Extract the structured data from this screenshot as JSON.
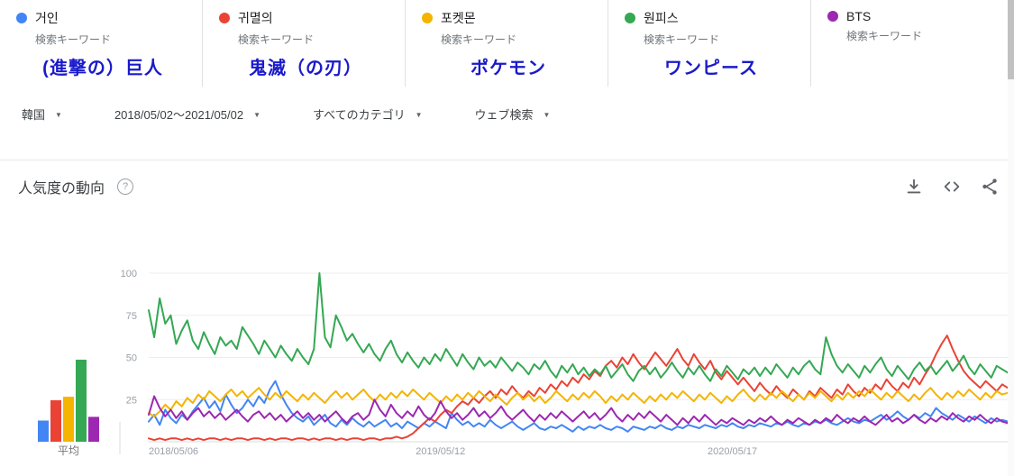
{
  "keywords": {
    "subtitle": "検索キーワード",
    "items": [
      {
        "term": "거인",
        "color": "#4285f4",
        "annotation": "(進撃の）巨人"
      },
      {
        "term": "귀멸의",
        "color": "#ea4335",
        "annotation": "鬼滅（の刃）"
      },
      {
        "term": "포켓몬",
        "color": "#f4b400",
        "annotation": "ポケモン"
      },
      {
        "term": "원피스",
        "color": "#34a853",
        "annotation": "ワンピース"
      },
      {
        "term": "BTS",
        "color": "#9c27b0"
      }
    ]
  },
  "filters": {
    "items": [
      {
        "label": "韓国"
      },
      {
        "label": "2018/05/02～2021/05/02"
      },
      {
        "label": "すべてのカテゴリ"
      },
      {
        "label": "ウェブ検索"
      }
    ]
  },
  "section": {
    "title": "人気度の動向",
    "actions": [
      {
        "icon": "download"
      },
      {
        "icon": "embed"
      },
      {
        "icon": "share"
      }
    ]
  },
  "chart_data": {
    "type": "line",
    "title": "人気度の動向",
    "ylim": [
      0,
      100
    ],
    "y_ticks": [
      25,
      50,
      75,
      100
    ],
    "grid": true,
    "avg_label": "平均",
    "x_tick_labels": [
      {
        "label": "2018/05/06",
        "index": 0
      },
      {
        "label": "2019/05/12",
        "index": 53
      },
      {
        "label": "2020/05/17",
        "index": 106
      }
    ],
    "series": [
      {
        "name": "거인",
        "color": "#4285f4",
        "values": [
          12,
          16,
          10,
          19,
          14,
          11,
          16,
          13,
          18,
          22,
          26,
          20,
          24,
          18,
          28,
          22,
          17,
          20,
          25,
          21,
          27,
          23,
          31,
          36,
          28,
          22,
          17,
          14,
          12,
          15,
          10,
          13,
          16,
          11,
          9,
          13,
          10,
          14,
          11,
          9,
          12,
          9,
          11,
          13,
          9,
          11,
          8,
          12,
          10,
          8,
          11,
          9,
          12,
          10,
          8,
          17,
          13,
          10,
          12,
          9,
          11,
          9,
          13,
          10,
          8,
          10,
          12,
          9,
          7,
          9,
          11,
          8,
          7,
          9,
          8,
          10,
          8,
          6,
          9,
          7,
          9,
          8,
          10,
          8,
          7,
          9,
          8,
          6,
          9,
          8,
          7,
          9,
          8,
          10,
          8,
          7,
          9,
          8,
          10,
          9,
          8,
          10,
          9,
          8,
          10,
          9,
          11,
          9,
          8,
          10,
          9,
          11,
          10,
          9,
          11,
          10,
          12,
          10,
          9,
          11,
          10,
          12,
          11,
          13,
          11,
          10,
          12,
          14,
          12,
          11,
          13,
          12,
          14,
          16,
          13,
          15,
          18,
          15,
          13,
          16,
          14,
          17,
          15,
          20,
          17,
          15,
          13,
          16,
          14,
          12,
          15,
          13,
          11,
          14,
          12,
          13,
          12
        ]
      },
      {
        "name": "귀멸의",
        "color": "#ea4335",
        "values": [
          2,
          1,
          2,
          1,
          2,
          2,
          1,
          2,
          1,
          2,
          1,
          2,
          2,
          1,
          2,
          1,
          2,
          2,
          1,
          2,
          2,
          1,
          2,
          1,
          2,
          2,
          1,
          2,
          2,
          1,
          2,
          1,
          2,
          2,
          1,
          2,
          1,
          2,
          2,
          1,
          2,
          2,
          1,
          2,
          2,
          3,
          2,
          3,
          5,
          8,
          11,
          14,
          12,
          16,
          19,
          17,
          21,
          24,
          22,
          26,
          23,
          27,
          30,
          26,
          31,
          28,
          33,
          29,
          26,
          30,
          27,
          32,
          29,
          34,
          31,
          36,
          33,
          38,
          35,
          40,
          37,
          42,
          39,
          45,
          48,
          44,
          50,
          46,
          52,
          47,
          43,
          48,
          53,
          49,
          45,
          50,
          55,
          49,
          45,
          52,
          47,
          43,
          48,
          41,
          37,
          42,
          38,
          34,
          38,
          34,
          30,
          35,
          31,
          28,
          33,
          29,
          26,
          31,
          28,
          25,
          30,
          27,
          32,
          29,
          26,
          31,
          28,
          34,
          30,
          27,
          32,
          29,
          34,
          31,
          37,
          33,
          30,
          35,
          32,
          38,
          34,
          40,
          45,
          52,
          58,
          63,
          55,
          48,
          42,
          38,
          35,
          32,
          36,
          33,
          30,
          34,
          32
        ]
      },
      {
        "name": "포켓몬",
        "color": "#f4b400",
        "values": [
          17,
          15,
          18,
          22,
          19,
          24,
          21,
          26,
          23,
          28,
          25,
          30,
          27,
          24,
          28,
          31,
          27,
          30,
          26,
          29,
          32,
          28,
          25,
          29,
          26,
          30,
          27,
          24,
          28,
          25,
          29,
          26,
          23,
          27,
          30,
          26,
          29,
          25,
          28,
          31,
          27,
          24,
          28,
          25,
          29,
          26,
          30,
          27,
          31,
          28,
          25,
          29,
          26,
          23,
          27,
          24,
          28,
          25,
          29,
          26,
          30,
          27,
          24,
          28,
          25,
          22,
          26,
          29,
          25,
          28,
          24,
          27,
          23,
          26,
          30,
          27,
          24,
          28,
          25,
          29,
          26,
          30,
          27,
          23,
          27,
          24,
          28,
          25,
          29,
          26,
          23,
          27,
          24,
          28,
          25,
          29,
          26,
          30,
          27,
          24,
          28,
          25,
          29,
          26,
          23,
          27,
          24,
          28,
          31,
          27,
          24,
          28,
          25,
          29,
          26,
          30,
          27,
          24,
          28,
          25,
          29,
          26,
          30,
          27,
          24,
          28,
          25,
          29,
          26,
          30,
          27,
          31,
          28,
          25,
          29,
          26,
          30,
          27,
          24,
          28,
          25,
          29,
          32,
          28,
          25,
          29,
          26,
          30,
          27,
          31,
          28,
          25,
          29,
          26,
          30,
          28,
          29
        ]
      },
      {
        "name": "원피스",
        "color": "#34a853",
        "values": [
          78,
          62,
          85,
          70,
          75,
          58,
          66,
          72,
          60,
          55,
          65,
          58,
          52,
          62,
          57,
          60,
          55,
          68,
          63,
          58,
          52,
          60,
          55,
          50,
          57,
          52,
          48,
          55,
          50,
          46,
          55,
          100,
          62,
          56,
          75,
          68,
          60,
          64,
          58,
          53,
          58,
          52,
          48,
          55,
          60,
          52,
          47,
          53,
          48,
          44,
          50,
          46,
          52,
          48,
          55,
          50,
          45,
          52,
          47,
          43,
          50,
          45,
          48,
          44,
          50,
          46,
          42,
          47,
          44,
          40,
          46,
          43,
          48,
          42,
          38,
          45,
          41,
          46,
          40,
          44,
          39,
          43,
          40,
          45,
          38,
          42,
          46,
          40,
          36,
          42,
          45,
          40,
          44,
          38,
          42,
          47,
          42,
          38,
          44,
          40,
          45,
          40,
          36,
          43,
          39,
          45,
          41,
          37,
          43,
          40,
          44,
          39,
          44,
          40,
          46,
          42,
          38,
          44,
          40,
          45,
          48,
          43,
          40,
          62,
          52,
          45,
          41,
          46,
          42,
          38,
          45,
          41,
          46,
          50,
          43,
          39,
          45,
          41,
          37,
          43,
          47,
          42,
          45,
          40,
          44,
          48,
          42,
          46,
          51,
          44,
          40,
          46,
          42,
          38,
          45,
          43,
          41
        ]
      },
      {
        "name": "BTS",
        "color": "#9c27b0",
        "values": [
          16,
          27,
          20,
          15,
          19,
          14,
          18,
          13,
          17,
          20,
          15,
          18,
          14,
          17,
          13,
          16,
          19,
          15,
          12,
          16,
          18,
          14,
          17,
          13,
          16,
          12,
          15,
          18,
          14,
          17,
          13,
          16,
          12,
          15,
          18,
          14,
          11,
          15,
          17,
          13,
          16,
          25,
          19,
          15,
          22,
          17,
          14,
          18,
          15,
          21,
          16,
          13,
          17,
          24,
          18,
          14,
          17,
          13,
          16,
          20,
          15,
          18,
          14,
          17,
          21,
          16,
          13,
          16,
          19,
          15,
          12,
          16,
          13,
          17,
          14,
          18,
          15,
          12,
          15,
          18,
          14,
          17,
          13,
          16,
          20,
          15,
          12,
          16,
          13,
          17,
          14,
          18,
          15,
          12,
          16,
          13,
          10,
          14,
          11,
          15,
          12,
          16,
          13,
          10,
          13,
          11,
          14,
          12,
          10,
          13,
          11,
          14,
          12,
          15,
          12,
          10,
          13,
          11,
          14,
          12,
          10,
          13,
          11,
          14,
          12,
          16,
          13,
          11,
          14,
          12,
          15,
          12,
          10,
          13,
          16,
          12,
          14,
          11,
          13,
          16,
          13,
          11,
          14,
          12,
          15,
          13,
          17,
          14,
          12,
          15,
          13,
          16,
          13,
          11,
          14,
          12,
          11
        ]
      }
    ]
  }
}
